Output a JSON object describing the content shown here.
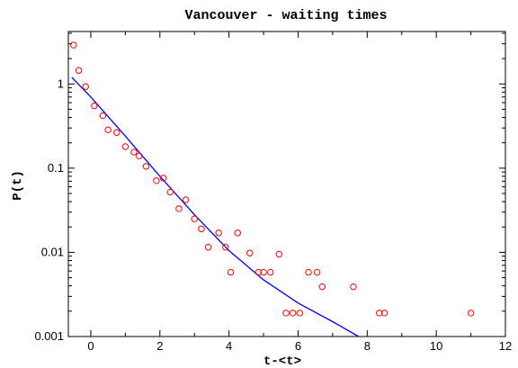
{
  "chart_data": {
    "type": "scatter",
    "title": "Vancouver - waiting times",
    "xlabel": "t-<t>",
    "ylabel": "P(t)",
    "xlim": [
      -0.65,
      12
    ],
    "ylim": [
      0.001,
      4.2
    ],
    "yscale": "log",
    "grid": false,
    "legend": "none",
    "x_ticks": [
      0,
      2,
      4,
      6,
      8,
      10,
      12
    ],
    "x_tick_labels": [
      "0",
      "2",
      "4",
      "6",
      "8",
      "10",
      "12"
    ],
    "y_ticks": [
      0.001,
      0.01,
      0.1,
      1
    ],
    "y_tick_labels": [
      "0.001",
      "0.01",
      "0.1",
      "1"
    ],
    "series": [
      {
        "type": "scatter",
        "color": "#ff0000",
        "marker": "circle-open",
        "points": [
          [
            -0.5,
            2.9
          ],
          [
            -0.35,
            1.45
          ],
          [
            -0.15,
            0.93
          ],
          [
            0.1,
            0.55
          ],
          [
            0.35,
            0.42
          ],
          [
            0.5,
            0.285
          ],
          [
            0.75,
            0.265
          ],
          [
            1.0,
            0.18
          ],
          [
            1.25,
            0.155
          ],
          [
            1.4,
            0.14
          ],
          [
            1.6,
            0.105
          ],
          [
            1.9,
            0.071
          ],
          [
            2.1,
            0.076
          ],
          [
            2.3,
            0.052
          ],
          [
            2.55,
            0.033
          ],
          [
            2.75,
            0.042
          ],
          [
            3.0,
            0.025
          ],
          [
            3.2,
            0.019
          ],
          [
            3.4,
            0.0115
          ],
          [
            3.7,
            0.017
          ],
          [
            3.9,
            0.0115
          ],
          [
            4.05,
            0.0058
          ],
          [
            4.25,
            0.017
          ],
          [
            4.6,
            0.0098
          ],
          [
            4.85,
            0.0058
          ],
          [
            5.0,
            0.0058
          ],
          [
            5.2,
            0.0058
          ],
          [
            5.45,
            0.0095
          ],
          [
            5.65,
            0.0019
          ],
          [
            5.85,
            0.0019
          ],
          [
            6.05,
            0.0019
          ],
          [
            6.3,
            0.0058
          ],
          [
            6.55,
            0.0058
          ],
          [
            6.7,
            0.0039
          ],
          [
            7.6,
            0.0039
          ],
          [
            8.35,
            0.0019
          ],
          [
            8.5,
            0.0019
          ],
          [
            11.0,
            0.0019
          ]
        ]
      },
      {
        "type": "line",
        "color": "#0000ff",
        "points": [
          [
            -0.55,
            1.2
          ],
          [
            0.0,
            0.7
          ],
          [
            1.0,
            0.24
          ],
          [
            2.0,
            0.08
          ],
          [
            3.0,
            0.028
          ],
          [
            4.0,
            0.0105
          ],
          [
            5.0,
            0.0047
          ],
          [
            6.0,
            0.0025
          ],
          [
            7.0,
            0.0015
          ],
          [
            7.75,
            0.001
          ]
        ]
      }
    ]
  }
}
